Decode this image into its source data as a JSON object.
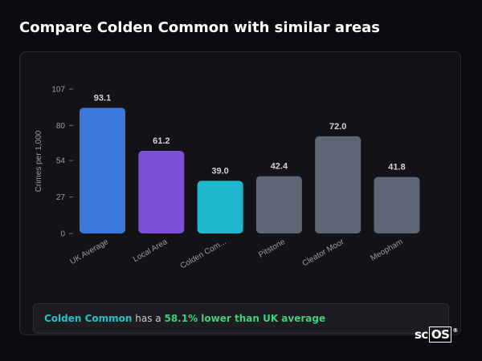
{
  "header": {
    "title": "Compare Colden Common with similar areas"
  },
  "chart_data": {
    "type": "bar",
    "title": "",
    "xlabel": "",
    "ylabel": "Crimes per 1,000",
    "ylim": [
      0,
      107
    ],
    "yticks": [
      0,
      27,
      54,
      80,
      107
    ],
    "categories": [
      "UK Average",
      "Local Area",
      "Colden Com...",
      "Pitstone",
      "Cleator Moor",
      "Meopham"
    ],
    "values": [
      93.1,
      61.2,
      39.0,
      42.4,
      72.0,
      41.8
    ],
    "value_labels": [
      "93.1",
      "61.2",
      "39.0",
      "42.4",
      "72.0",
      "41.8"
    ],
    "bar_colors": [
      "#3a78dc",
      "#7b4fd6",
      "#1fb8d0",
      "#5c6677",
      "#5c6677",
      "#5c6677"
    ],
    "grid": false
  },
  "summary": {
    "area": "Colden Common",
    "middle": " has a ",
    "stat": "58.1% lower than UK average"
  },
  "logo": {
    "text": "sc",
    "boxed": "OS",
    "mark": "®"
  }
}
